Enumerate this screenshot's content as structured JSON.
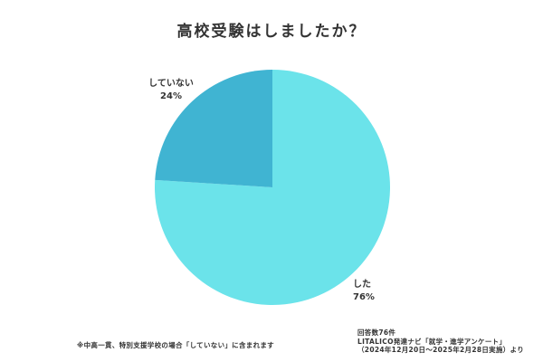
{
  "title": "高校受験はしましたか？",
  "chart_data": {
    "type": "pie",
    "title": "高校受験はしましたか？",
    "categories": [
      "した",
      "していない"
    ],
    "values": [
      76,
      24
    ],
    "unit": "%",
    "colors": [
      "#6BE3EA",
      "#40B4D2"
    ],
    "start_angle": "12 o'clock",
    "legend": "none (direct labels)"
  },
  "labels": {
    "no": {
      "name": "していない",
      "value": "24%"
    },
    "yes": {
      "name": "した",
      "value": "76%"
    }
  },
  "footnote": "※中高一貫、特別支援学校の場合「していない」に含まれます",
  "source": {
    "line1": "回答数76件",
    "line2": "LITALICO発達ナビ「就学・進学アンケート」",
    "line3": "（2024年12月20日～2025年2月28日実施）より"
  }
}
